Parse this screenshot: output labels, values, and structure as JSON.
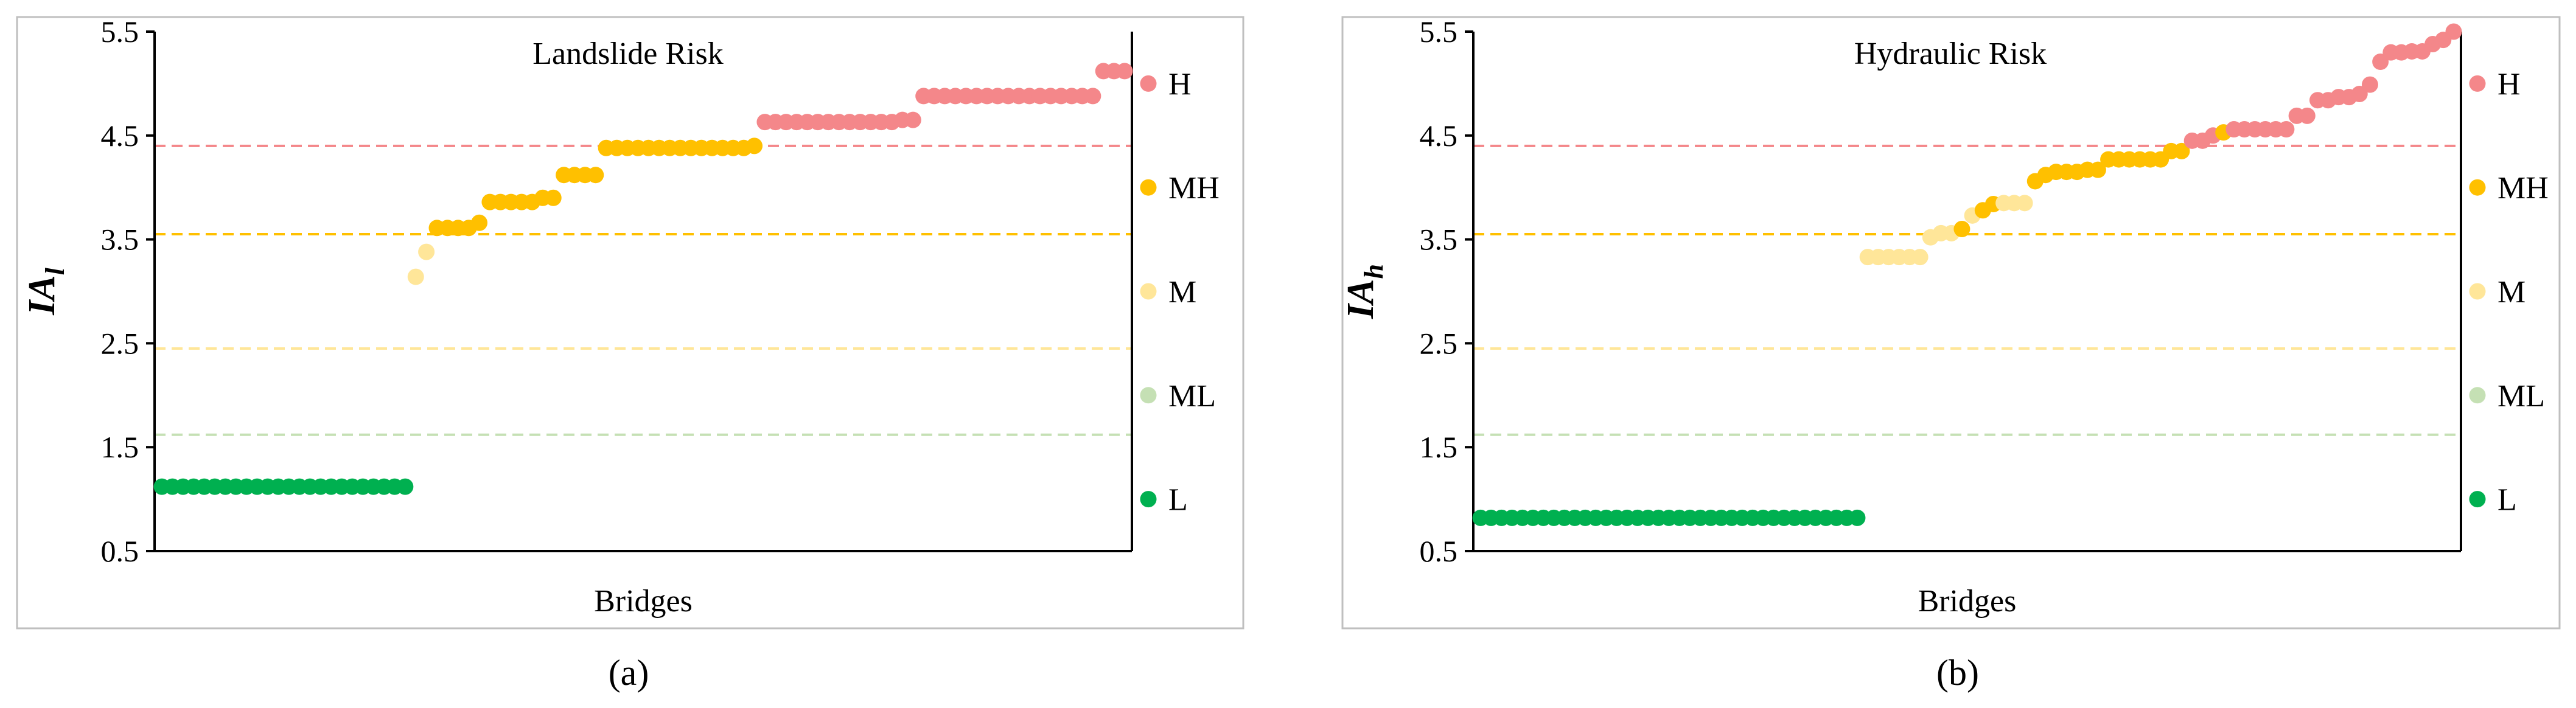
{
  "figure": {
    "panel_labels": [
      "(a)",
      "(b)"
    ]
  },
  "chart_data": [
    {
      "type": "scatter",
      "title": "Landslide Risk",
      "xlabel": "Bridges",
      "ylabel": "IA",
      "ylabel_subscript": "l",
      "ylim": [
        0.5,
        5.5
      ],
      "yticks": [
        "0.5",
        "1.5",
        "2.5",
        "3.5",
        "4.5",
        "5.5"
      ],
      "legend": {
        "placement": "right",
        "entries": [
          {
            "label": "H",
            "color": "#F4878A"
          },
          {
            "label": "MH",
            "color": "#FFC000"
          },
          {
            "label": "M",
            "color": "#FFE699"
          },
          {
            "label": "ML",
            "color": "#C5E0B4"
          },
          {
            "label": "L",
            "color": "#00B050"
          }
        ]
      },
      "thresholds": [
        {
          "y": 4.4,
          "color": "#F4878A"
        },
        {
          "y": 3.55,
          "color": "#FFC000"
        },
        {
          "y": 2.45,
          "color": "#FFE699"
        },
        {
          "y": 1.62,
          "color": "#C5E0B4"
        }
      ],
      "groups": [
        {
          "class": "L",
          "y": 1.12,
          "count": 24
        },
        {
          "class": "M",
          "y": 3.14,
          "count": 1
        },
        {
          "class": "M",
          "y": 3.38,
          "count": 1
        },
        {
          "class": "MH",
          "y": 3.61,
          "count": 4
        },
        {
          "class": "MH",
          "y": 3.66,
          "count": 1
        },
        {
          "class": "MH",
          "y": 3.86,
          "count": 5
        },
        {
          "class": "MH",
          "y": 3.9,
          "count": 2
        },
        {
          "class": "MH",
          "y": 4.12,
          "count": 4
        },
        {
          "class": "MH",
          "y": 4.38,
          "count": 14
        },
        {
          "class": "MH",
          "y": 4.4,
          "count": 1
        },
        {
          "class": "H",
          "y": 4.63,
          "count": 13
        },
        {
          "class": "H",
          "y": 4.65,
          "count": 2
        },
        {
          "class": "H",
          "y": 4.88,
          "count": 17
        },
        {
          "class": "H",
          "y": 5.12,
          "count": 3
        }
      ]
    },
    {
      "type": "scatter",
      "title": "Hydraulic Risk",
      "xlabel": "Bridges",
      "ylabel": "IA",
      "ylabel_subscript": "h",
      "ylim": [
        0.5,
        5.5
      ],
      "yticks": [
        "0.5",
        "1.5",
        "2.5",
        "3.5",
        "4.5",
        "5.5"
      ],
      "legend": {
        "placement": "right",
        "entries": [
          {
            "label": "H",
            "color": "#F4878A"
          },
          {
            "label": "MH",
            "color": "#FFC000"
          },
          {
            "label": "M",
            "color": "#FFE699"
          },
          {
            "label": "ML",
            "color": "#C5E0B4"
          },
          {
            "label": "L",
            "color": "#00B050"
          }
        ]
      },
      "thresholds": [
        {
          "y": 4.4,
          "color": "#F4878A"
        },
        {
          "y": 3.55,
          "color": "#FFC000"
        },
        {
          "y": 2.45,
          "color": "#FFE699"
        },
        {
          "y": 1.62,
          "color": "#C5E0B4"
        }
      ],
      "groups": [
        {
          "class": "L",
          "y": 0.82,
          "count": 37
        },
        {
          "class": "M",
          "y": 3.33,
          "count": 6
        },
        {
          "class": "M",
          "y": 3.52,
          "count": 1
        },
        {
          "class": "M",
          "y": 3.56,
          "count": 2
        },
        {
          "class": "MH",
          "y": 3.6,
          "count": 1
        },
        {
          "class": "M",
          "y": 3.73,
          "count": 1
        },
        {
          "class": "MH",
          "y": 3.78,
          "count": 1
        },
        {
          "class": "MH",
          "y": 3.84,
          "count": 1
        },
        {
          "class": "M",
          "y": 3.85,
          "count": 3
        },
        {
          "class": "MH",
          "y": 4.06,
          "count": 1
        },
        {
          "class": "MH",
          "y": 4.12,
          "count": 1
        },
        {
          "class": "MH",
          "y": 4.15,
          "count": 3
        },
        {
          "class": "MH",
          "y": 4.17,
          "count": 2
        },
        {
          "class": "MH",
          "y": 4.27,
          "count": 6
        },
        {
          "class": "MH",
          "y": 4.35,
          "count": 2
        },
        {
          "class": "H",
          "y": 4.45,
          "count": 2
        },
        {
          "class": "H",
          "y": 4.5,
          "count": 1
        },
        {
          "class": "MH",
          "y": 4.53,
          "count": 1
        },
        {
          "class": "H",
          "y": 4.56,
          "count": 6
        },
        {
          "class": "H",
          "y": 4.69,
          "count": 2
        },
        {
          "class": "H",
          "y": 4.84,
          "count": 2
        },
        {
          "class": "H",
          "y": 4.87,
          "count": 2
        },
        {
          "class": "H",
          "y": 4.9,
          "count": 1
        },
        {
          "class": "H",
          "y": 4.99,
          "count": 1
        },
        {
          "class": "H",
          "y": 5.21,
          "count": 1
        },
        {
          "class": "H",
          "y": 5.3,
          "count": 2
        },
        {
          "class": "H",
          "y": 5.31,
          "count": 2
        },
        {
          "class": "H",
          "y": 5.38,
          "count": 1
        },
        {
          "class": "H",
          "y": 5.42,
          "count": 1
        },
        {
          "class": "H",
          "y": 5.5,
          "count": 1
        }
      ]
    }
  ]
}
